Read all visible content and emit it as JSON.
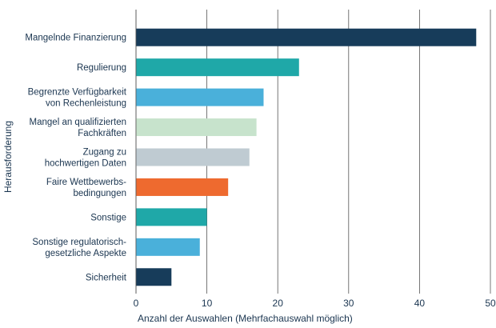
{
  "chart_data": {
    "type": "bar",
    "orientation": "horizontal",
    "title": "",
    "xlabel": "Anzahl der Auswahlen (Mehrfachauswahl möglich)",
    "ylabel": "Herausforderung",
    "xlim": [
      0,
      50
    ],
    "xticks": [
      0,
      10,
      20,
      30,
      40,
      50
    ],
    "grid": "vertical",
    "legend": "none",
    "categories": [
      [
        "Mangelnde Finanzierung"
      ],
      [
        "Regulierung"
      ],
      [
        "Begrenzte Verfügbarkeit",
        "von Rechenleistung"
      ],
      [
        "Mangel an qualifizierten",
        "Fachkräften"
      ],
      [
        "Zugang zu",
        "hochwertigen Daten"
      ],
      [
        "Faire Wettbewerbs-",
        "bedingungen"
      ],
      [
        "Sonstige"
      ],
      [
        "Sonstige regulatorisch-",
        "gesetzliche Aspekte"
      ],
      [
        "Sicherheit"
      ]
    ],
    "values": [
      48,
      23,
      18,
      17,
      16,
      13,
      10,
      9,
      5
    ],
    "colors": [
      "#173c5a",
      "#1fa8a8",
      "#4ab0da",
      "#c7e3cc",
      "#bfcbd2",
      "#ee6a2f",
      "#1fa8a8",
      "#4ab0da",
      "#173c5a"
    ]
  }
}
